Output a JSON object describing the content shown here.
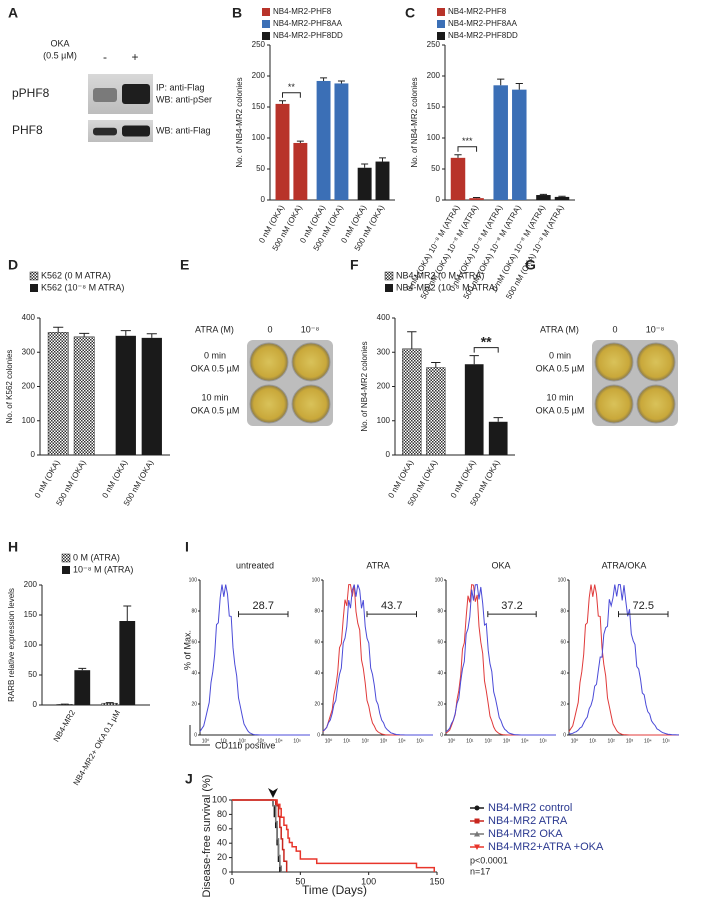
{
  "panels": [
    "A",
    "B",
    "C",
    "D",
    "E",
    "F",
    "G",
    "H",
    "I",
    "J"
  ],
  "blot": {
    "treatment": [
      "OKA",
      "(0.5 µM)"
    ],
    "lanes": [
      "-",
      "+"
    ],
    "rows": [
      {
        "label": "pPHF8",
        "annotation": [
          "IP: anti-Flag",
          "WB: anti-pSer"
        ]
      },
      {
        "label": "PHF8",
        "annotation": [
          "WB: anti-Flag"
        ]
      }
    ]
  },
  "plates": [
    {
      "axis_label": "ATRA (M)",
      "columns": [
        "0",
        "10⁻⁸"
      ],
      "rows": [
        [
          "0 min",
          "OKA 0.5 µM"
        ],
        [
          "10 min",
          "OKA 0.5 µM"
        ]
      ]
    },
    {
      "axis_label": "ATRA (M)",
      "columns": [
        "0",
        "10⁻⁸"
      ],
      "rows": [
        [
          "0 min",
          "OKA 0.5 µM"
        ],
        [
          "10 min",
          "OKA 0.5 µM"
        ]
      ]
    }
  ],
  "flow": {
    "ylabel": "% of Max.",
    "xlabel": "CD11b positive",
    "yticks": [
      0,
      20,
      40,
      60,
      80,
      100
    ],
    "xticks": [
      "10⁰",
      "10¹",
      "10²",
      "10³",
      "10⁴",
      "10⁵"
    ],
    "plots": [
      {
        "title": "untreated",
        "gate": 28.7,
        "colors": [
          "#4b4bd8"
        ]
      },
      {
        "title": "ATRA",
        "gate": 43.7,
        "colors": [
          "#e03a3a",
          "#4b4bd8"
        ]
      },
      {
        "title": "OKA",
        "gate": 37.2,
        "colors": [
          "#e03a3a",
          "#4b4bd8"
        ]
      },
      {
        "title": "ATRA/OKA",
        "gate": 72.5,
        "colors": [
          "#e03a3a",
          "#4b4bd8"
        ]
      }
    ]
  },
  "chart_data": [
    {
      "type": "bar",
      "ylabel": "No. of NB4-MR2 colonies",
      "categories": [
        "0 nM (OKA)",
        "500 nM (OKA)",
        "0 nM (OKA)",
        "500 nM (OKA)",
        "0 nM (OKA)",
        "500 nM (OKA)"
      ],
      "series": [
        {
          "name": "NB4-MR2-PHF8",
          "color": "#b8332a",
          "values": [
            155,
            92,
            null,
            null,
            null,
            null
          ],
          "errors": [
            5,
            3,
            null,
            null,
            null,
            null
          ]
        },
        {
          "name": "NB4-MR2-PHF8AA",
          "color": "#3b6fb6",
          "values": [
            null,
            null,
            192,
            188,
            null,
            null
          ],
          "errors": [
            null,
            null,
            5,
            4,
            null,
            null
          ]
        },
        {
          "name": "NB4-MR2-PHF8DD",
          "color": "#1a1a1a",
          "values": [
            null,
            null,
            null,
            null,
            52,
            62
          ],
          "errors": [
            null,
            null,
            null,
            null,
            6,
            6
          ]
        }
      ],
      "ylim": [
        0,
        250
      ],
      "yticks": [
        0,
        50,
        100,
        150,
        200,
        250
      ],
      "annotations": [
        {
          "text": "**",
          "categories": [
            0,
            1
          ]
        }
      ]
    },
    {
      "type": "bar",
      "ylabel": "No. of NB4-MR2 colonies",
      "categories": [
        "0 nM (OKA) 10⁻⁸ M (ATRA)",
        "500 nM (OKA) 10⁻⁸ M (ATRA)",
        "0 nM (OKA) 10⁻⁸ M (ATRA)",
        "500 nM (OKA) 10⁻⁸ M (ATRA)",
        "0 nM (OKA) 10⁻⁸ M (ATRA)",
        "500 nM (OKA) 10⁻⁸ M (ATRA)"
      ],
      "series": [
        {
          "name": "NB4-MR2-PHF8",
          "color": "#b8332a",
          "values": [
            68,
            3,
            null,
            null,
            null,
            null
          ],
          "errors": [
            5,
            1,
            null,
            null,
            null,
            null
          ]
        },
        {
          "name": "NB4-MR2-PHF8AA",
          "color": "#3b6fb6",
          "values": [
            null,
            null,
            185,
            178,
            null,
            null
          ],
          "errors": [
            null,
            null,
            10,
            10,
            null,
            null
          ]
        },
        {
          "name": "NB4-MR2-PHF8DD",
          "color": "#1a1a1a",
          "values": [
            null,
            null,
            null,
            null,
            8,
            5
          ],
          "errors": [
            null,
            null,
            null,
            null,
            1,
            1
          ]
        }
      ],
      "ylim": [
        0,
        250
      ],
      "yticks": [
        0,
        50,
        100,
        150,
        200,
        250
      ],
      "annotations": [
        {
          "text": "***",
          "categories": [
            0,
            1
          ]
        }
      ]
    },
    {
      "type": "bar",
      "ylabel": "No. of K562 colonies",
      "categories": [
        "0 nM (OKA)",
        "500 nM (OKA)",
        "0 nM (OKA)",
        "500 nM (OKA)"
      ],
      "series": [
        {
          "name": "K562 (0 M ATRA)",
          "color": "#1a1a1a",
          "pattern": "checker",
          "values": [
            358,
            345,
            null,
            null
          ],
          "errors": [
            15,
            10,
            null,
            null
          ]
        },
        {
          "name": "K562 (10⁻⁸ M ATRA)",
          "color": "#1a1a1a",
          "values": [
            null,
            null,
            348,
            342
          ],
          "errors": [
            null,
            null,
            15,
            12
          ]
        }
      ],
      "ylim": [
        0,
        400
      ],
      "yticks": [
        0,
        100,
        200,
        300,
        400
      ]
    },
    {
      "type": "bar",
      "ylabel": "No. of NB4-MR2 colonies",
      "categories": [
        "0 nM (OKA)",
        "500 nM (OKA)",
        "0 nM (OKA)",
        "500 nM (OKA)"
      ],
      "series": [
        {
          "name": "NB4-MR2 (0 M ATRA)",
          "color": "#1a1a1a",
          "pattern": "checker",
          "values": [
            310,
            255,
            null,
            null
          ],
          "errors": [
            50,
            15,
            null,
            null
          ]
        },
        {
          "name": "NB4-MR2 (10⁻⁸ M ATRA)",
          "color": "#1a1a1a",
          "values": [
            null,
            null,
            265,
            97
          ],
          "errors": [
            null,
            null,
            25,
            12
          ]
        }
      ],
      "ylim": [
        0,
        400
      ],
      "yticks": [
        0,
        100,
        200,
        300,
        400
      ],
      "annotations": [
        {
          "text": "**",
          "categories": [
            2,
            3
          ]
        }
      ]
    },
    {
      "type": "bar",
      "ylabel": "RARB relative expression levels",
      "categories": [
        "NB4-MR2",
        "NB4-MR2+ OKA 0.1 µM"
      ],
      "series": [
        {
          "name": "0 M (ATRA)",
          "color": "#1a1a1a",
          "pattern": "checker",
          "values": [
            1,
            3
          ],
          "errors": [
            0.5,
            1
          ]
        },
        {
          "name": "10⁻⁸ M (ATRA)",
          "color": "#1a1a1a",
          "values": [
            58,
            140
          ],
          "errors": [
            3,
            25
          ]
        }
      ],
      "ylim": [
        0,
        200
      ],
      "yticks": [
        0,
        50,
        100,
        150,
        200
      ]
    },
    {
      "type": "line",
      "step": true,
      "xlabel": "Time (Days)",
      "ylabel": "Disease-free survival (%)",
      "series": [
        {
          "name": "NB4-MR2 control",
          "color": "#1a1a1a",
          "marker": "circle",
          "x": [
            0,
            30,
            31,
            32,
            33,
            34,
            35
          ],
          "values": [
            100,
            92,
            77,
            62,
            38,
            15,
            0
          ]
        },
        {
          "name": "NB4-MR2 ATRA",
          "color": "#c8261e",
          "marker": "square",
          "x": [
            0,
            32,
            34,
            35,
            36,
            37,
            38,
            40
          ],
          "values": [
            100,
            92,
            77,
            62,
            46,
            31,
            15,
            0
          ]
        },
        {
          "name": "NB4-MR2 OKA",
          "color": "#777777",
          "marker": "triangle",
          "x": [
            0,
            30,
            32,
            33,
            34,
            35,
            36
          ],
          "values": [
            100,
            92,
            70,
            46,
            23,
            8,
            0
          ]
        },
        {
          "name": "NB4-MR2+ATRA +OKA",
          "color": "#e8352b",
          "marker": "triangle-down",
          "x": [
            0,
            33,
            35,
            36,
            38,
            40,
            41,
            42,
            44,
            47,
            50,
            62,
            135,
            148
          ],
          "values": [
            100,
            94,
            88,
            76,
            65,
            59,
            47,
            41,
            35,
            29,
            18,
            12,
            6,
            0
          ]
        }
      ],
      "legend_color": "#2b3990",
      "annotations": [
        "p<0.0001",
        "n=17"
      ],
      "arrow_x": 30,
      "xlim": [
        0,
        150
      ],
      "xticks": [
        0,
        50,
        100,
        150
      ],
      "ylim": [
        0,
        100
      ],
      "yticks": [
        0,
        20,
        40,
        60,
        80,
        100
      ]
    }
  ]
}
